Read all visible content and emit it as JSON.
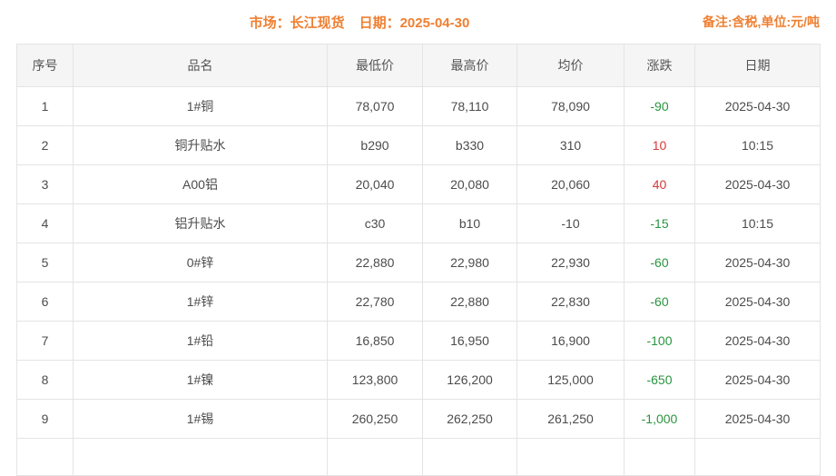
{
  "topbar": {
    "market_label": "市场：长江现货",
    "date_label": "日期：2025-04-30",
    "remark": "备注:含税,单位:元/吨"
  },
  "table": {
    "headers": [
      "序号",
      "品名",
      "最低价",
      "最高价",
      "均价",
      "涨跌",
      "日期"
    ],
    "rows": [
      {
        "no": "1",
        "name": "1#铜",
        "low": "78,070",
        "high": "78,110",
        "avg": "78,090",
        "change": "-90",
        "trend": "down",
        "date": "2025-04-30"
      },
      {
        "no": "2",
        "name": "铜升贴水",
        "low": "b290",
        "high": "b330",
        "avg": "310",
        "change": "10",
        "trend": "up",
        "date": "10:15"
      },
      {
        "no": "3",
        "name": "A00铝",
        "low": "20,040",
        "high": "20,080",
        "avg": "20,060",
        "change": "40",
        "trend": "up",
        "date": "2025-04-30"
      },
      {
        "no": "4",
        "name": "铝升贴水",
        "low": "c30",
        "high": "b10",
        "avg": "-10",
        "change": "-15",
        "trend": "down",
        "date": "10:15"
      },
      {
        "no": "5",
        "name": "0#锌",
        "low": "22,880",
        "high": "22,980",
        "avg": "22,930",
        "change": "-60",
        "trend": "down",
        "date": "2025-04-30"
      },
      {
        "no": "6",
        "name": "1#锌",
        "low": "22,780",
        "high": "22,880",
        "avg": "22,830",
        "change": "-60",
        "trend": "down",
        "date": "2025-04-30"
      },
      {
        "no": "7",
        "name": "1#铅",
        "low": "16,850",
        "high": "16,950",
        "avg": "16,900",
        "change": "-100",
        "trend": "down",
        "date": "2025-04-30"
      },
      {
        "no": "8",
        "name": "1#镍",
        "low": "123,800",
        "high": "126,200",
        "avg": "125,000",
        "change": "-650",
        "trend": "down",
        "date": "2025-04-30"
      },
      {
        "no": "9",
        "name": "1#锡",
        "low": "260,250",
        "high": "262,250",
        "avg": "261,250",
        "change": "-1,000",
        "trend": "down",
        "date": "2025-04-30"
      }
    ]
  },
  "colors": {
    "accent_orange": "#ef7f31",
    "up_red": "#d63a3a",
    "down_green": "#2a9440"
  }
}
